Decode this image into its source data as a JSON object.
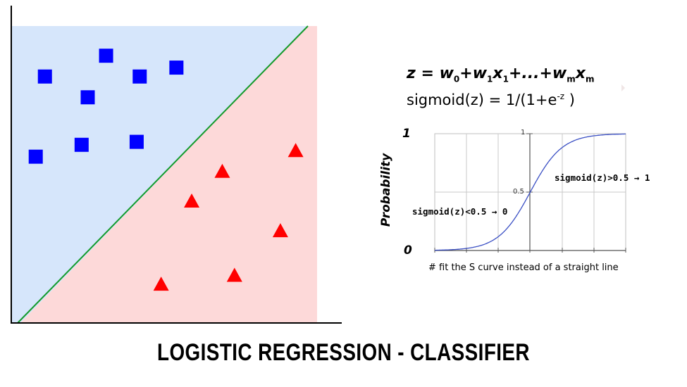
{
  "title": "LOGISTIC REGRESSION  - CLASSIFIER",
  "formula": {
    "z": "z",
    "eq": " = ",
    "w0": "w",
    "w0_sub": "0",
    "plus1": "+",
    "w1": "w",
    "w1_sub": "1",
    "x1": "x",
    "x1_sub": "1",
    "dots": "+...+",
    "wm": "w",
    "wm_sub": "m",
    "xm": "x",
    "xm_sub": "m"
  },
  "sigmoid_def": {
    "lhs": "sigmoid(z) = 1/(1+e",
    "exponent": "-z",
    "rhs": " )"
  },
  "sigmoid_plot": {
    "ylabel": "Probability",
    "y_top": "1",
    "y_bottom": "0",
    "tick_one": "1",
    "tick_half": "0.5",
    "annotation_high": "sigmoid(z)>0.5 → 1",
    "annotation_low": "sigmoid(z)<0.5 → 0",
    "caption": "# fit the S curve instead of a straight line",
    "curve_color": "#3a4fc4"
  },
  "chart_data": {
    "type": "scatter",
    "xlim": [
      0,
      10
    ],
    "ylim": [
      0,
      10
    ],
    "series": [
      {
        "marker": "square",
        "color": "#0000ff",
        "points": [
          [
            1.1,
            8.3
          ],
          [
            3.1,
            9.0
          ],
          [
            5.4,
            8.6
          ],
          [
            2.5,
            7.6
          ],
          [
            4.2,
            8.3
          ],
          [
            0.8,
            5.6
          ],
          [
            2.3,
            6.0
          ],
          [
            4.1,
            6.1
          ]
        ]
      },
      {
        "marker": "triangle",
        "color": "#ff0000",
        "points": [
          [
            9.3,
            5.8
          ],
          [
            6.9,
            5.1
          ],
          [
            5.9,
            4.1
          ],
          [
            8.8,
            3.1
          ],
          [
            7.3,
            1.6
          ],
          [
            4.9,
            1.3
          ]
        ]
      }
    ],
    "decision_boundary": {
      "from": [
        0.3,
        0.0
      ],
      "to": [
        9.7,
        10.0
      ],
      "color": "#159a2b"
    },
    "regions": {
      "upper": "#d6e6fb",
      "lower": "#fdd9d9"
    }
  }
}
